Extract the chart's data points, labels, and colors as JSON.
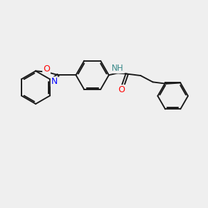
{
  "background_color": "#efefef",
  "bond_color": "#1a1a1a",
  "bond_width": 1.4,
  "atom_colors": {
    "O": "#ff0000",
    "N": "#0000ff",
    "NH": "#3a8a8a",
    "C": "#1a1a1a"
  },
  "figsize": [
    3.0,
    3.0
  ],
  "dpi": 100,
  "xlim": [
    0,
    10
  ],
  "ylim": [
    0,
    10
  ]
}
